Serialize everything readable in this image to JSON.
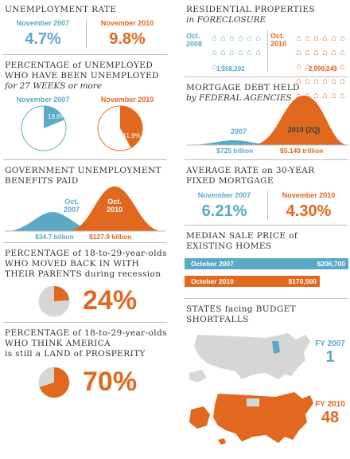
{
  "unemployment": {
    "title": "UNEMPLOYMENT RATE",
    "left_label": "November 2007",
    "left_value": "4.7%",
    "right_label": "November 2010",
    "right_value": "9.8%"
  },
  "long_term": {
    "title_line1": "PERCENTAGE of UNEMPLOYED",
    "title_line2": "WHO HAVE BEEN UNEMPLOYED",
    "title_line3": "for 27 WEEKS or more",
    "left_label": "November 2007",
    "left_value": "18.8%",
    "left_fraction": 0.188,
    "right_label": "November 2010",
    "right_value": "41.9%",
    "right_fraction": 0.419
  },
  "benefits": {
    "title_line1": "GOVERNMENT UNEMPLOYMENT",
    "title_line2": "BENEFITS PAID",
    "left_period": "Oct. 2007",
    "left_value": "$34.7 billion",
    "right_period": "Oct. 2010",
    "right_value": "$127.9 billion"
  },
  "moved_back": {
    "title_line1": "PERCENTAGE of 18-to-29-year-olds",
    "title_line2": "WHO MOVED BACK IN WITH",
    "title_line3": "THEIR PARENTS during recession",
    "value": "24%",
    "fraction": 0.24
  },
  "prosperity": {
    "title_line1": "PERCENTAGE of 18-to-29-year-olds",
    "title_line2": "WHO THINK AMERICA",
    "title_line3": "is still a LAND of PROSPERITY",
    "value": "70%",
    "fraction": 0.7
  },
  "foreclosure": {
    "title_line1": "RESIDENTIAL PROPERTIES",
    "title_line2": "in FORECLOSURE",
    "left_period": "Oct. 2008",
    "left_value": "1,168,202",
    "left_icons": 14,
    "right_period": "Oct. 2010",
    "right_value": "2,090,243",
    "right_icons": 30
  },
  "mortgage_debt": {
    "title_line1": "MORTGAGE DEBT HELD",
    "title_line2": "by FEDERAL AGENCIES",
    "left_period": "2007",
    "left_value": "$725 billion",
    "right_period": "2010 (2Q)",
    "right_value": "$5.148 trillion"
  },
  "rate": {
    "title_line1": "AVERAGE RATE on 30-YEAR",
    "title_line2": "FIXED MORTGAGE",
    "left_label": "November 2007",
    "left_value": "6.21%",
    "right_label": "November 2010",
    "right_value": "4.30%"
  },
  "homes": {
    "title_line1": "MEDIAN SALE PRICE of",
    "title_line2": "EXISTING HOMES",
    "bar1_label": "October 2007",
    "bar1_value": "$206,700",
    "bar1_amount": 206700,
    "bar2_label": "October 2010",
    "bar2_value": "$170,500",
    "bar2_amount": 170500
  },
  "states": {
    "title_line1": "STATES facing BUDGET",
    "title_line2": "SHORTFALLS",
    "top_label": "FY 2007",
    "top_value": "1",
    "bottom_label": "FY 2010",
    "bottom_value": "48"
  },
  "colors": {
    "blue": "#5ba9c6",
    "orange": "#e0691f",
    "gray": "#d6d6d6"
  }
}
